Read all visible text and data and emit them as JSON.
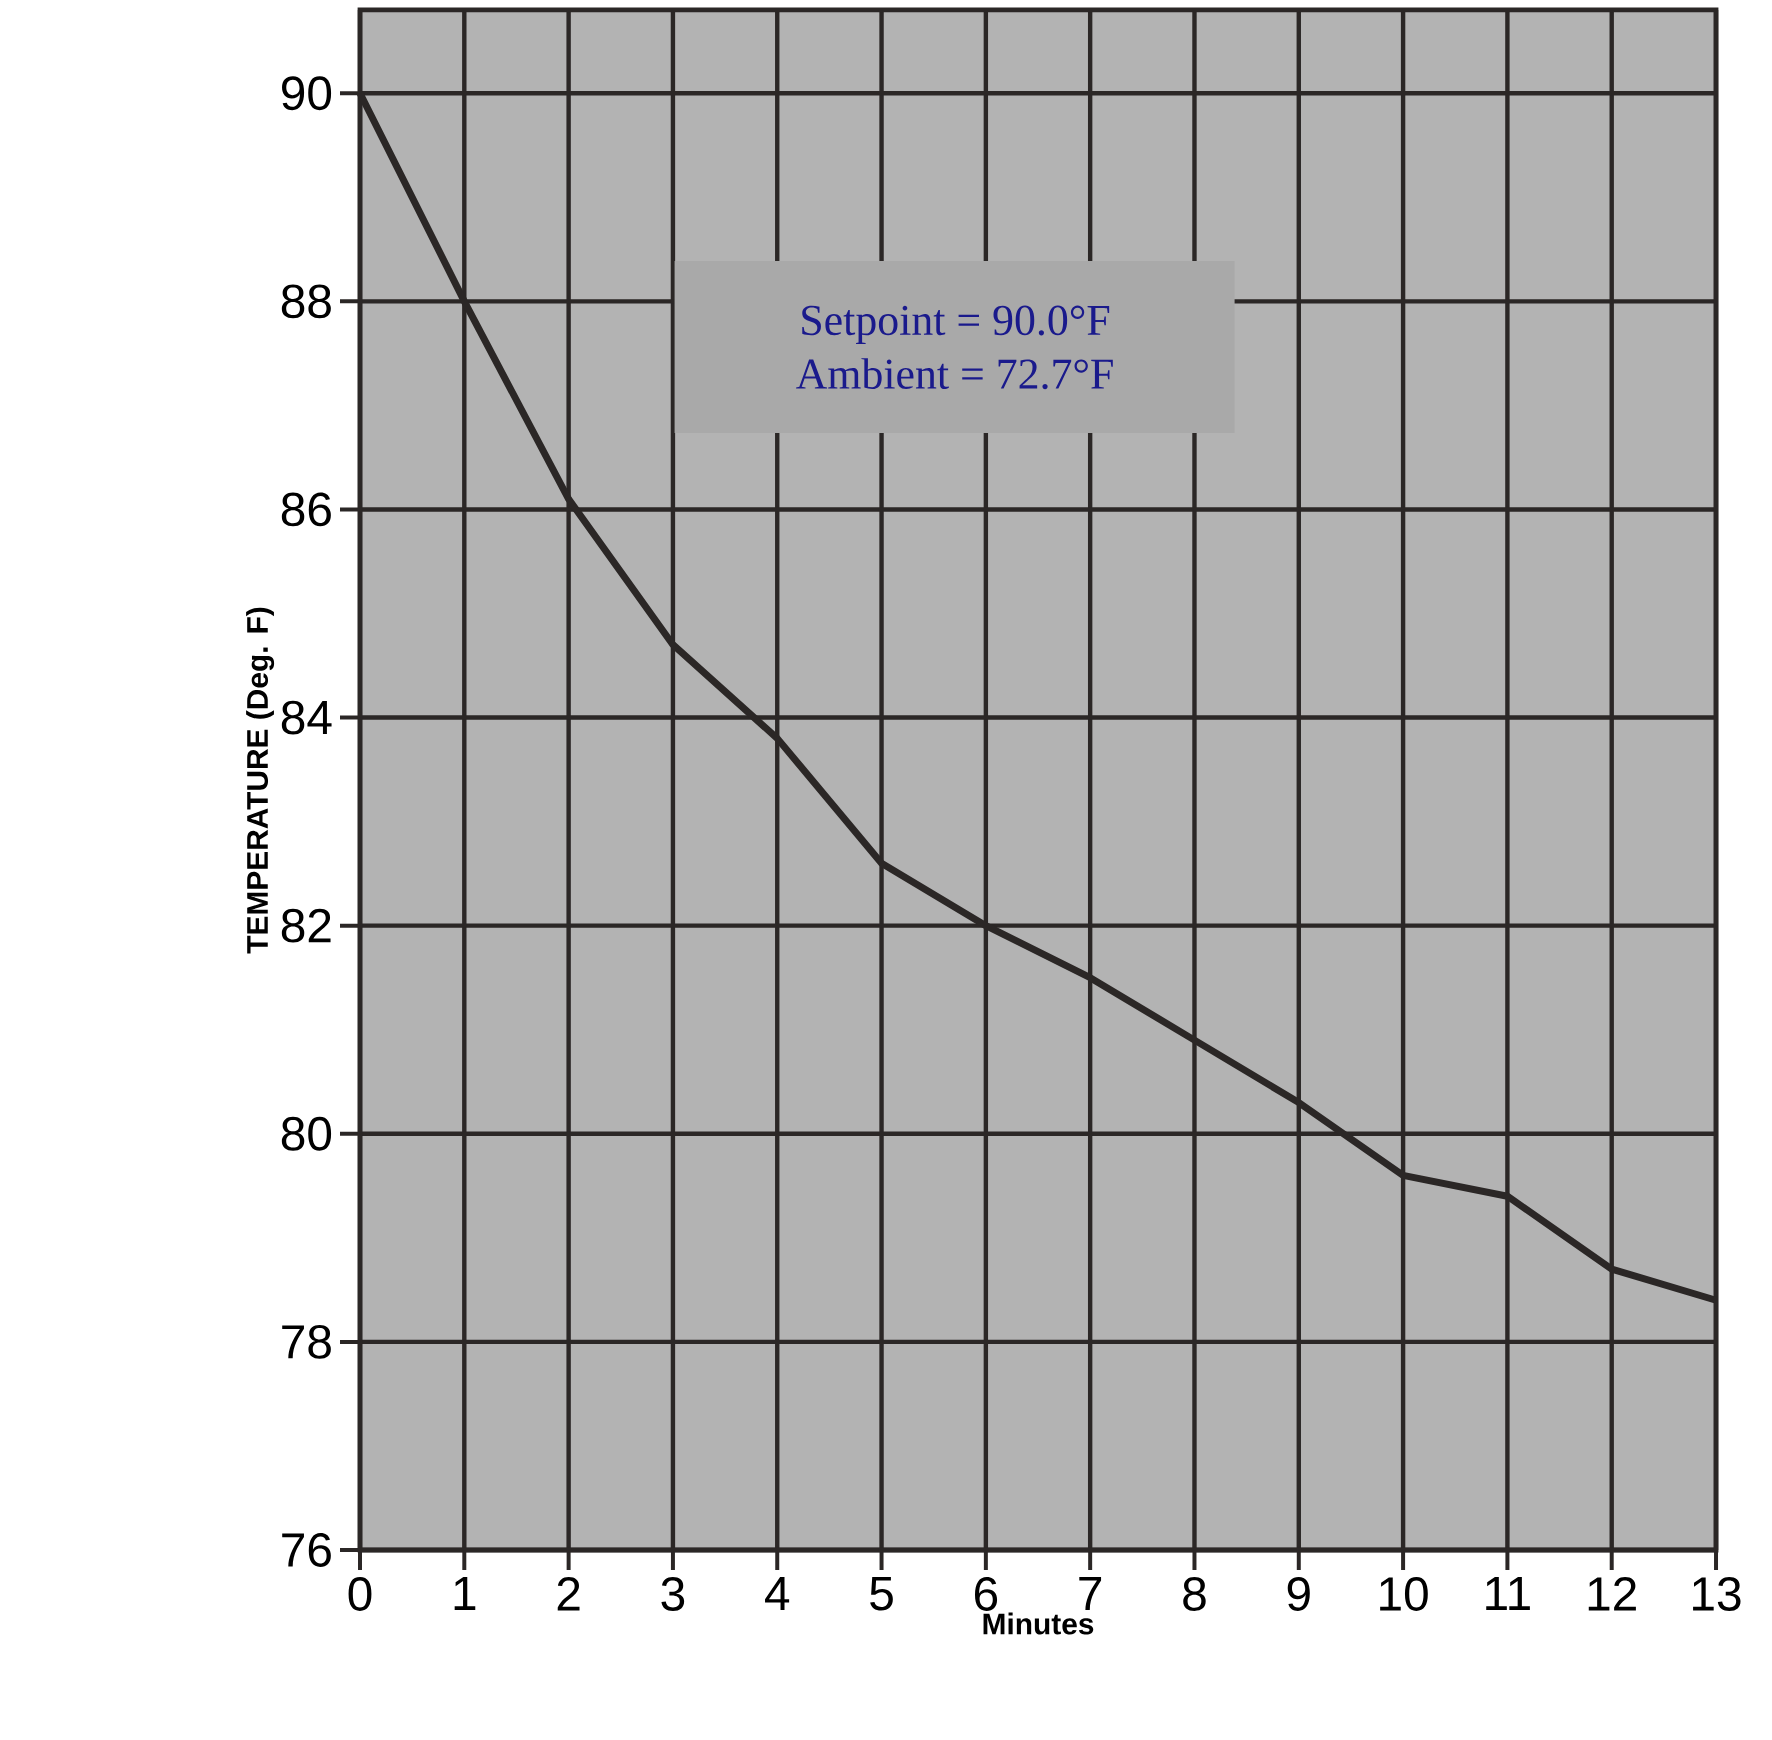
{
  "chart_data": {
    "type": "line",
    "xlabel": "Minutes",
    "ylabel": "TEMPERATURE (Deg. F)",
    "x": [
      0,
      1,
      2,
      3,
      4,
      5,
      6,
      7,
      8,
      9,
      10,
      11,
      12,
      13
    ],
    "series": [
      {
        "color": "#2b2726",
        "values": [
          90.0,
          88.0,
          86.1,
          84.7,
          83.8,
          82.6,
          82.0,
          81.5,
          80.9,
          80.3,
          79.6,
          79.4,
          78.7,
          78.4
        ]
      }
    ],
    "annotations": [
      "Setpoint = 90.0°F",
      "Ambient = 72.7°F"
    ],
    "xlim": [
      0,
      13
    ],
    "ylim": [
      76,
      90.8
    ],
    "xticks": [
      0,
      1,
      2,
      3,
      4,
      5,
      6,
      7,
      8,
      9,
      10,
      11,
      12,
      13
    ],
    "yticks": [
      76,
      78,
      80,
      82,
      84,
      86,
      88,
      90
    ],
    "grid": true,
    "marker": "none",
    "line_style": "solid"
  }
}
